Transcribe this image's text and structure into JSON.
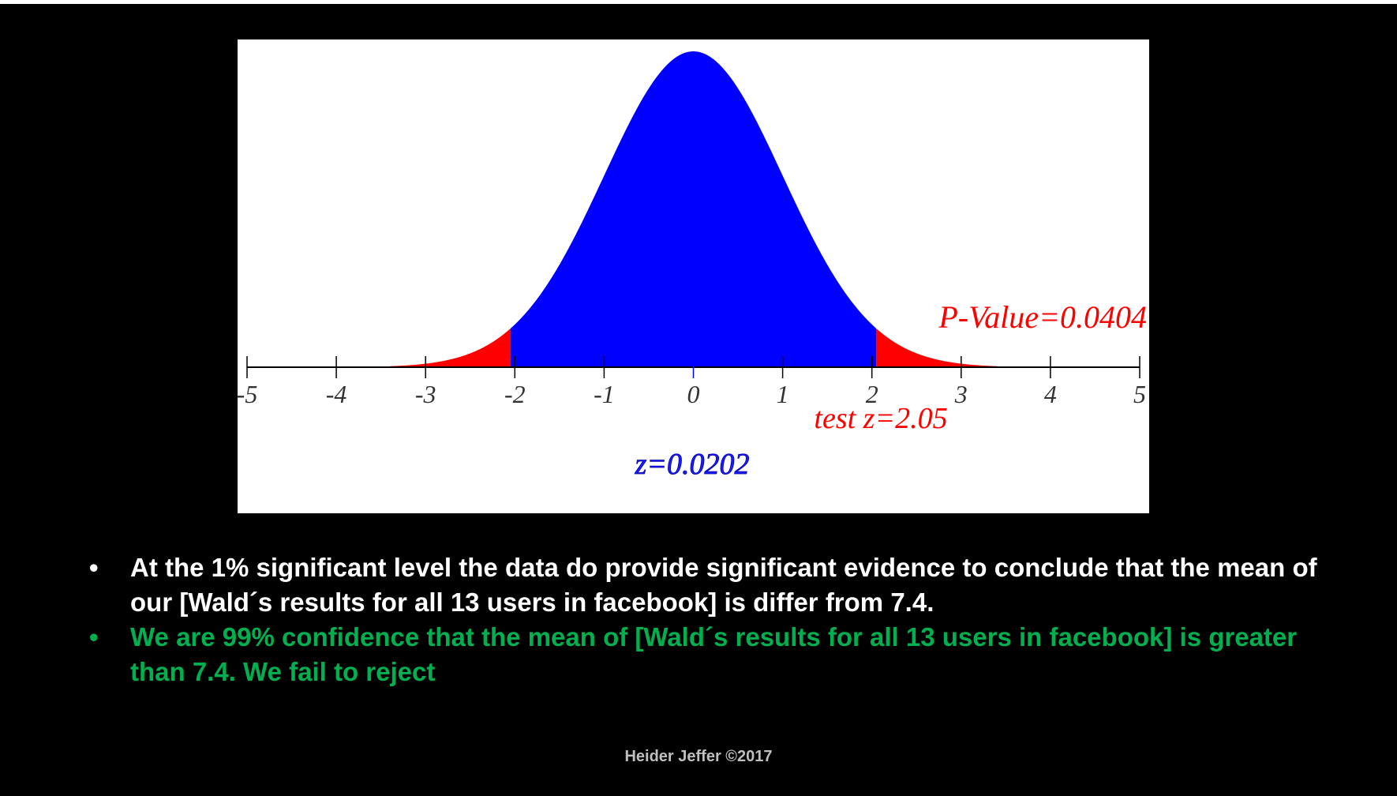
{
  "chart_data": {
    "type": "area",
    "distribution": "standard normal",
    "x_ticks": [
      -5,
      -4,
      -3,
      -2,
      -1,
      0,
      1,
      2,
      3,
      4,
      5
    ],
    "x_tick_labels": [
      "-5",
      "-4",
      "-3",
      "-2",
      "-1",
      "0",
      "1",
      "2",
      "3",
      "4",
      "5"
    ],
    "xlim": [
      -5,
      5
    ],
    "shaded_regions": [
      {
        "from": -3.4,
        "to": -2.05,
        "color": "#ff0000",
        "label": "left tail"
      },
      {
        "from": -2.05,
        "to": 2.05,
        "color": "#0000ff",
        "label": "center"
      },
      {
        "from": 2.05,
        "to": 3.4,
        "color": "#ff0000",
        "label": "right tail"
      }
    ],
    "annotations": {
      "p_value": "P-Value=0.0404",
      "test_z": "test z=2.05",
      "z_tail": "z=0.0202"
    },
    "colors": {
      "center": "#0000ff",
      "tails": "#ff0000",
      "axis": "#000000"
    }
  },
  "bullets": [
    {
      "text": "At the 1% significant level the data do provide significant evidence to conclude that the mean of our [Wald´s results for all  13 users in facebook] is differ from 7.4.",
      "color": "#ffffff"
    },
    {
      "text": "We are 99% confidence that the mean of [Wald´s results for all  13 users in facebook] is greater than 7.4. We fail to reject",
      "color": "#00b050"
    }
  ],
  "bullet_glyph": "•",
  "footer": "Heider Jeffer ©2017"
}
